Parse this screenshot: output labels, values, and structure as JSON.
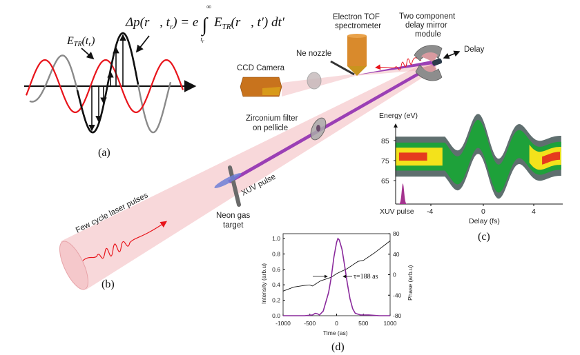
{
  "panel_a": {
    "caption": "(a)",
    "field_label_main": "E",
    "field_label_sub": "TR",
    "field_label_arg": "(t",
    "field_label_arg_sub": "r",
    "field_label_close": ")",
    "formula": {
      "lhs": "Δp(r⃗, t",
      "lhs_sub": "r",
      "lhs_close": ") = e",
      "integral": "∫",
      "upper": "∞",
      "lower": "t",
      "lower_sub": "r",
      "integrand": "E",
      "integrand_sub": "TR",
      "integrand_rest": "(r⃗, t′) dt′"
    },
    "colors": {
      "field": "#e8141b",
      "vector_potential": "#8a8a8a",
      "highlight": "#111111"
    }
  },
  "panel_b": {
    "caption": "(b)",
    "labels": {
      "electron_tof_1": "Electron TOF",
      "electron_tof_2": "spectrometer",
      "mirror_1": "Two component",
      "mirror_2": "delay mirror",
      "mirror_3": "module",
      "delay": "Delay",
      "ne_nozzle": "Ne nozzle",
      "ccd_camera": "CCD Camera",
      "zr_filter_1": "Zirconium filter",
      "zr_filter_2": "on pellicle",
      "xuv_pulse": "XUV pulse",
      "laser": "Few cycle laser pulses",
      "neon_target_1": "Neon gas",
      "neon_target_2": "target"
    },
    "colors": {
      "laser_cone": "#f2b8bc",
      "xuv_beam": "#9b3fb5",
      "xuv_pulse": "#6d7fd6",
      "ccd": "#c8731d",
      "tof": "#d98a2c"
    }
  },
  "panel_c": {
    "caption": "(c)",
    "y_label": "Energy (eV)",
    "x_label": "Delay (fs)",
    "xuv_label": "XUV pulse",
    "y_ticks": [
      "85",
      "75",
      "65"
    ],
    "x_ticks": [
      "-4",
      "0",
      "4"
    ],
    "colors": {
      "outer": "#5f6f6f",
      "mid": "#1ea13a",
      "inner": "#f3e21b",
      "core": "#e53a1e",
      "xuv": "#a4338f"
    }
  },
  "chart_data": {
    "type": "line",
    "title": "",
    "caption": "(d)",
    "xlabel": "Time (as)",
    "ylabel": "Intensity (arb.u)",
    "y2label": "Phase (arb.u)",
    "xlim": [
      -1000,
      1000
    ],
    "ylim": [
      0,
      1.05
    ],
    "y2lim": [
      -80,
      80
    ],
    "x_ticks": [
      "-1000",
      "-500",
      "0",
      "500",
      "1000"
    ],
    "y_ticks": [
      "0.0",
      "0.2",
      "0.4",
      "0.6",
      "0.8",
      "1.0"
    ],
    "y2_ticks": [
      "80",
      "40",
      "0",
      "-40",
      "-80"
    ],
    "annotation": "τ=188 as",
    "grid": false,
    "series": [
      {
        "axis": "left",
        "color": "#8a2a9c",
        "x": [
          -1000,
          -600,
          -450,
          -400,
          -360,
          -320,
          -250,
          -150,
          -100,
          -50,
          0,
          25,
          50,
          100,
          150,
          200,
          250,
          300,
          350,
          450,
          600,
          800,
          1000
        ],
        "y": [
          0,
          0,
          0.01,
          0.03,
          0.025,
          0.01,
          0.06,
          0.3,
          0.5,
          0.76,
          0.95,
          1.0,
          0.98,
          0.86,
          0.65,
          0.42,
          0.22,
          0.09,
          0.03,
          0.01,
          0.01,
          0,
          0
        ]
      },
      {
        "axis": "right",
        "color": "#111111",
        "x": [
          -1000,
          -800,
          -600,
          -500,
          -450,
          -300,
          -100,
          0,
          200,
          400,
          500,
          700,
          900,
          1000
        ],
        "y": [
          -32,
          -24,
          -21,
          -20,
          -22,
          -12,
          -5,
          2,
          12,
          26,
          28,
          42,
          58,
          66
        ]
      }
    ]
  }
}
